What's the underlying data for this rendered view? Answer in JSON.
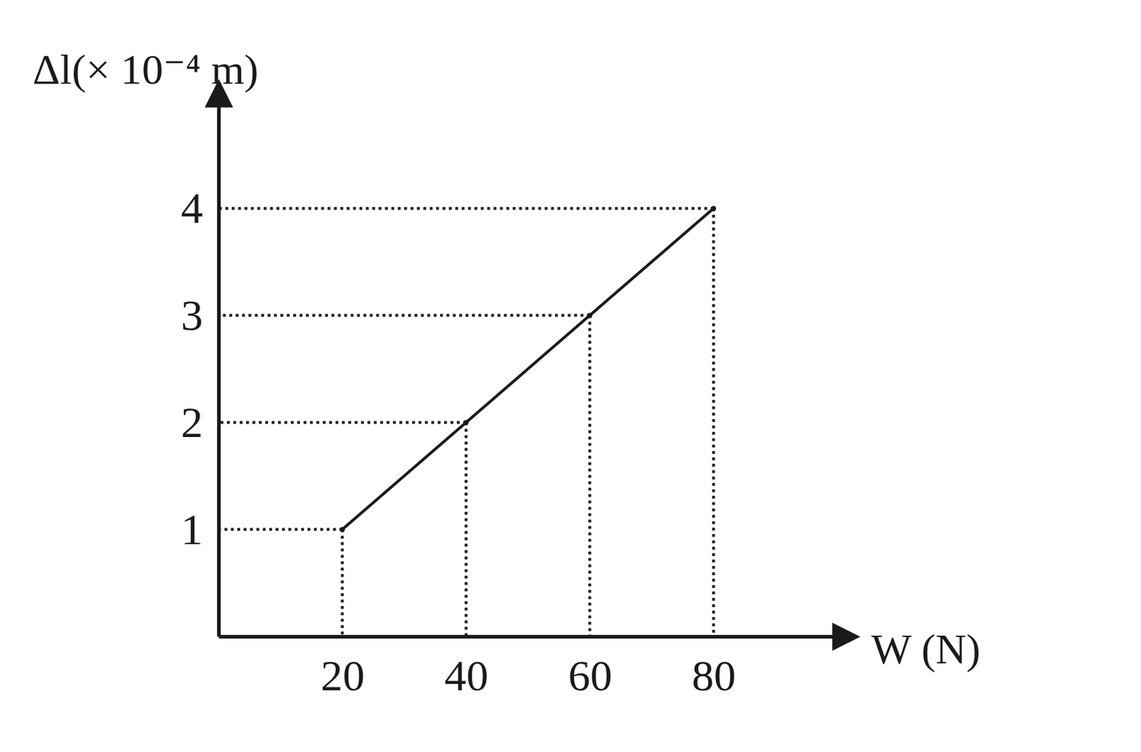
{
  "chart_data": {
    "type": "line",
    "x": [
      20,
      40,
      60,
      80
    ],
    "values": [
      1,
      2,
      3,
      4
    ],
    "xlim": [
      0,
      100
    ],
    "xticks": [
      20,
      40,
      60,
      80
    ],
    "ylim": [
      0,
      5
    ],
    "yticks": [
      1,
      2,
      3,
      4
    ],
    "x_label": "W (N)",
    "y_label": "Δl(× 10⁻⁴ m)",
    "color": "#1a1a1a",
    "line_style": "solid",
    "grid": false
  }
}
